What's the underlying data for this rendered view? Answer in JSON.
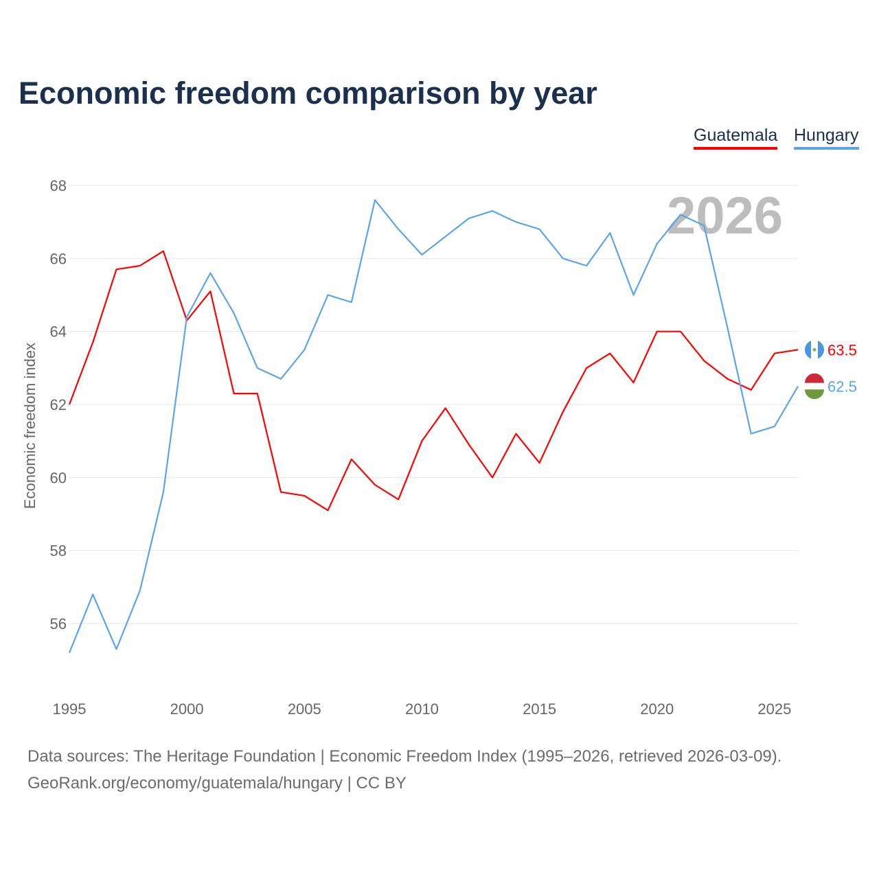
{
  "title": "Economic freedom comparison by year",
  "year_watermark": "2026",
  "sources": [
    "Data sources: The Heritage Foundation | Economic Freedom Index (1995–2026, retrieved 2026-03-09).",
    "GeoRank.org/economy/guatemala/hungary | CC BY"
  ],
  "chart_data": {
    "type": "line",
    "title": "Economic freedom comparison by year",
    "xlabel": "",
    "ylabel": "Economic freedom index",
    "x": [
      1995,
      1996,
      1997,
      1998,
      1999,
      2000,
      2001,
      2002,
      2003,
      2004,
      2005,
      2006,
      2007,
      2008,
      2009,
      2010,
      2011,
      2012,
      2013,
      2014,
      2015,
      2016,
      2017,
      2018,
      2019,
      2020,
      2021,
      2022,
      2023,
      2024,
      2025,
      2026
    ],
    "x_ticks": [
      "1995",
      "2000",
      "2005",
      "2010",
      "2015",
      "2020",
      "2025"
    ],
    "y_ticks": [
      "56",
      "58",
      "60",
      "62",
      "64",
      "66",
      "68"
    ],
    "xlim": [
      1995,
      2026
    ],
    "ylim": [
      54.3,
      68.3
    ],
    "grid": true,
    "legend_position": "top-right",
    "series": [
      {
        "name": "Guatemala",
        "color": "#ff0000",
        "end_label": "63.5",
        "values": [
          62.0,
          63.7,
          65.7,
          65.8,
          66.2,
          64.3,
          65.1,
          62.3,
          62.3,
          59.6,
          59.5,
          59.1,
          60.5,
          59.8,
          59.4,
          61.0,
          61.9,
          60.9,
          60.0,
          61.2,
          60.4,
          61.8,
          63.0,
          63.4,
          62.6,
          64.0,
          64.0,
          63.2,
          62.7,
          62.4,
          63.4,
          63.5
        ]
      },
      {
        "name": "Hungary",
        "color": "#5aa5ea",
        "end_label": "62.5",
        "values": [
          55.2,
          56.8,
          55.3,
          56.9,
          59.6,
          64.4,
          65.6,
          64.5,
          63.0,
          62.7,
          63.5,
          65.0,
          64.8,
          67.6,
          66.8,
          66.1,
          66.6,
          67.1,
          67.3,
          67.0,
          66.8,
          66.0,
          65.8,
          66.7,
          65.0,
          66.4,
          67.2,
          66.9,
          64.1,
          61.2,
          61.4,
          62.5
        ]
      }
    ]
  }
}
